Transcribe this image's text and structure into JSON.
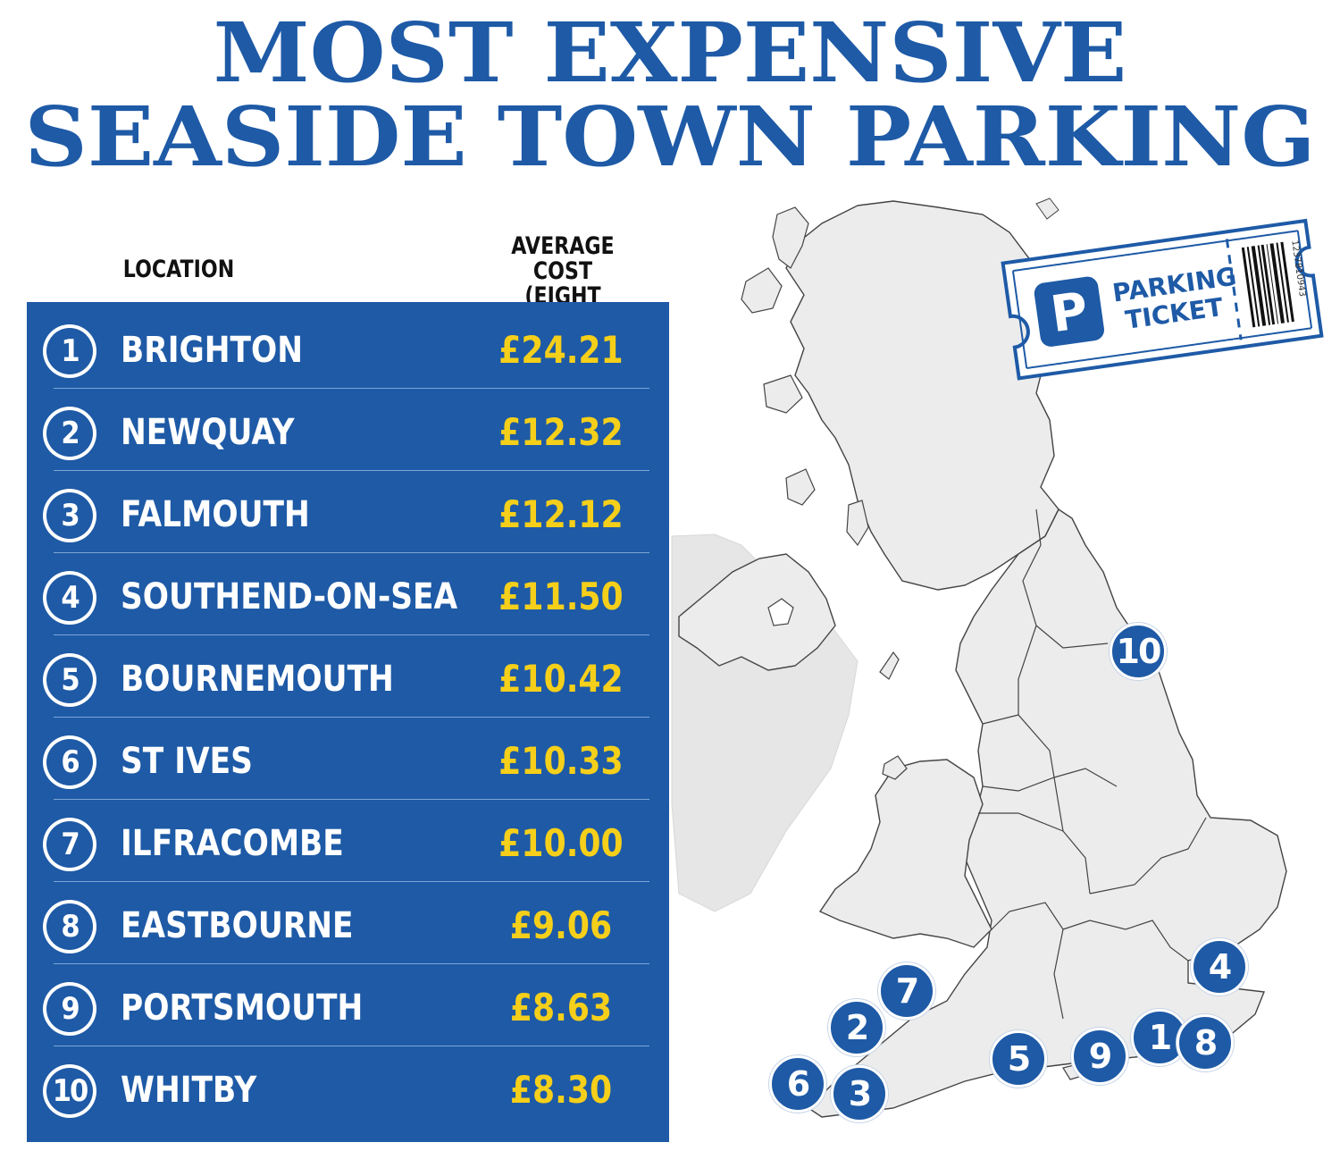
{
  "title": {
    "line1": "MOST EXPENSIVE",
    "line2": "SEASIDE TOWN PARKING"
  },
  "table": {
    "col_location": "LOCATION",
    "col_cost_line1": "AVERAGE COST",
    "col_cost_line2": "(EIGHT HOURS)",
    "rows": [
      {
        "rank": "1",
        "location": "BRIGHTON",
        "cost": "£24.21"
      },
      {
        "rank": "2",
        "location": "NEWQUAY",
        "cost": "£12.32"
      },
      {
        "rank": "3",
        "location": "FALMOUTH",
        "cost": "£12.12"
      },
      {
        "rank": "4",
        "location": "SOUTHEND-ON-SEA",
        "cost": "£11.50"
      },
      {
        "rank": "5",
        "location": "BOURNEMOUTH",
        "cost": "£10.42"
      },
      {
        "rank": "6",
        "location": "ST IVES",
        "cost": "£10.33"
      },
      {
        "rank": "7",
        "location": "ILFRACOMBE",
        "cost": "£10.00"
      },
      {
        "rank": "8",
        "location": "EASTBOURNE",
        "cost": "£9.06"
      },
      {
        "rank": "9",
        "location": "PORTSMOUTH",
        "cost": "£8.63"
      },
      {
        "rank": "10",
        "location": "WHITBY",
        "cost": "£8.30"
      }
    ]
  },
  "map": {
    "pins": [
      {
        "label": "10"
      },
      {
        "label": "7"
      },
      {
        "label": "2"
      },
      {
        "label": "6"
      },
      {
        "label": "3"
      },
      {
        "label": "5"
      },
      {
        "label": "9"
      },
      {
        "label": "1"
      },
      {
        "label": "8"
      },
      {
        "label": "4"
      }
    ]
  },
  "ticket": {
    "p_letter": "P",
    "line1": "PARKING",
    "line2": "TICKET",
    "barcode_number": "1237810943"
  },
  "colors": {
    "brand_blue": "#1e5aa6",
    "cost_yellow": "#f5cf1a",
    "map_land": "#ececec",
    "map_land_ireland": "#e3e3e3"
  }
}
